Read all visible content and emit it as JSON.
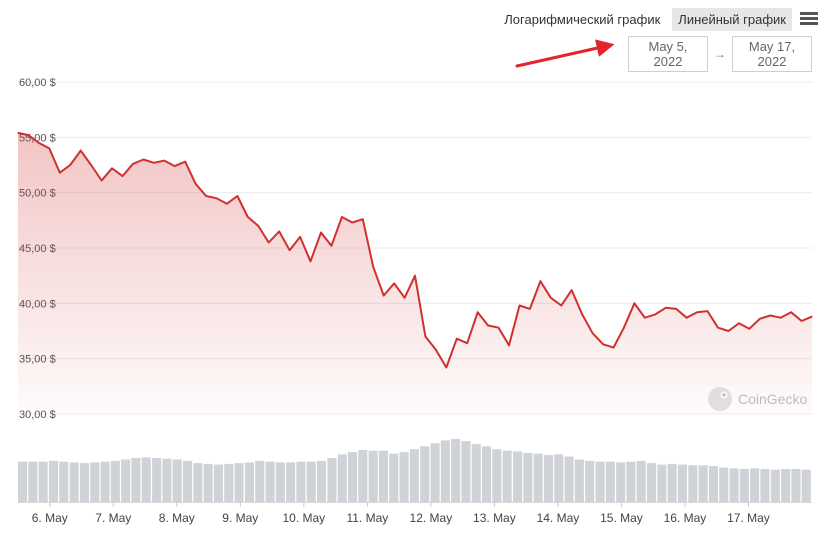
{
  "toolbar": {
    "log_label": "Логарифмический график",
    "linear_label": "Линейный график"
  },
  "range": {
    "from": "May 5, 2022",
    "separator": "→",
    "to": "May 17, 2022"
  },
  "watermark": "CoinGecko",
  "colors": {
    "line": "#d0302f",
    "volume": "#cfd3d8",
    "grid": "#ececec",
    "annotation": "#e3242b"
  },
  "chart_data": {
    "type": "line",
    "title": "",
    "xlabel": "",
    "ylabel": "",
    "ylim": [
      30,
      60
    ],
    "yticks": [
      {
        "value": 60,
        "label": "60,00 $"
      },
      {
        "value": 55,
        "label": "55,00 $"
      },
      {
        "value": 50,
        "label": "50,00 $"
      },
      {
        "value": 45,
        "label": "45,00 $"
      },
      {
        "value": 40,
        "label": "40,00 $"
      },
      {
        "value": 35,
        "label": "35,00 $"
      },
      {
        "value": 30,
        "label": "30,00 $"
      }
    ],
    "xticks": [
      "6. May",
      "7. May",
      "8. May",
      "9. May",
      "10. May",
      "11. May",
      "12. May",
      "13. May",
      "14. May",
      "15. May",
      "16. May",
      "17. May"
    ],
    "x_start": "2022-05-05T12:00",
    "x_end": "2022-05-18T00:00",
    "series": [
      {
        "values": [
          55.4,
          55.2,
          54.5,
          54.0,
          51.8,
          52.5,
          53.8,
          52.5,
          51.1,
          52.2,
          51.5,
          52.6,
          53.0,
          52.7,
          52.9,
          52.4,
          52.8,
          50.8,
          49.7,
          49.5,
          49.0,
          49.7,
          47.8,
          47.0,
          45.5,
          46.5,
          44.8,
          46.0,
          43.8,
          46.4,
          45.2,
          47.8,
          47.3,
          47.6,
          43.3,
          40.7,
          41.8,
          40.5,
          42.5,
          37.0,
          35.8,
          34.2,
          36.8,
          36.4,
          39.2,
          38.0,
          37.8,
          36.2,
          39.8,
          39.5,
          42.0,
          40.5,
          39.8,
          41.2,
          39.0,
          37.3,
          36.3,
          36.0,
          37.8,
          40.0,
          38.7,
          39.0,
          39.6,
          39.5,
          38.7,
          39.2,
          39.3,
          37.8,
          37.5,
          38.2,
          37.7,
          38.6,
          38.9,
          38.7,
          39.2,
          38.4,
          38.8
        ]
      }
    ],
    "volume": [
      55,
      55,
      55,
      56,
      55,
      54,
      53,
      54,
      55,
      56,
      58,
      60,
      61,
      60,
      59,
      58,
      56,
      53,
      52,
      51,
      52,
      53,
      54,
      56,
      55,
      54,
      54,
      55,
      55,
      56,
      60,
      65,
      68,
      71,
      70,
      70,
      66,
      68,
      72,
      76,
      80,
      84,
      86,
      83,
      79,
      76,
      72,
      70,
      69,
      67,
      66,
      64,
      65,
      62,
      58,
      56,
      55,
      55,
      54,
      55,
      56,
      53,
      51,
      52,
      51,
      50,
      50,
      49,
      47,
      46,
      45,
      46,
      45,
      44,
      45,
      45,
      44
    ]
  }
}
